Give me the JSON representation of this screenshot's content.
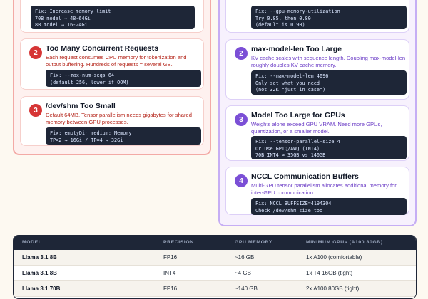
{
  "left_column": {
    "top_card": {
      "code": "Fix: Increase memory limit\n70B model → 48-64Gi\n8B model → 16-24Gi"
    },
    "cards": [
      {
        "number": "2",
        "title": "Too Many Concurrent Requests",
        "desc": "Each request consumes CPU memory for tokenization and output buffering. Hundreds of requests = several GB.",
        "code": "Fix: --max-num-seqs 64\n(default 256, lower if OOM)"
      },
      {
        "number": "3",
        "title": "/dev/shm Too Small",
        "desc": "Default 64MB. Tensor parallelism needs gigabytes for shared memory between GPU processes.",
        "code": "Fix: emptyDir medium: Memory\nTP=2 → 16Gi / TP=4 → 32Gi"
      }
    ]
  },
  "right_column": {
    "top_card": {
      "code": "Fix: --gpu-memory-utilization\nTry 0.85, then 0.80\n(default is 0.90)"
    },
    "cards": [
      {
        "number": "2",
        "title": "max-model-len Too Large",
        "desc": "KV cache scales with sequence length. Doubling max-model-len roughly doubles KV cache memory.",
        "code": "Fix: --max-model-len 4096\nOnly set what you need\n(not 32K \"just in case\")"
      },
      {
        "number": "3",
        "title": "Model Too Large for GPUs",
        "desc": "Weights alone exceed GPU VRAM. Need more GPUs, quantization, or a smaller model.",
        "code": "Fix: --tensor-parallel-size 4\nOr use GPTQ/AWQ (INT4)\n70B INT4 ≈ 35GB vs 140GB"
      },
      {
        "number": "4",
        "title": "NCCL Communication Buffers",
        "desc": "Multi-GPU tensor parallelism allocates additional memory for inter-GPU communication.",
        "code": "Fix: NCCL_BUFFSIZE=4194304\nCheck /dev/shm size too"
      }
    ]
  },
  "table": {
    "headers": [
      "MODEL",
      "PRECISION",
      "GPU MEMORY",
      "MINIMUM GPUs (A100 80GB)"
    ],
    "rows": [
      [
        "Llama 3.1 8B",
        "FP16",
        "~16 GB",
        "1x A100 (comfortable)"
      ],
      [
        "Llama 3.1 8B",
        "INT4",
        "~4 GB",
        "1x T4 16GB (tight)"
      ],
      [
        "Llama 3.1 70B",
        "FP16",
        "~140 GB",
        "2x A100 80GB (tight)"
      ]
    ]
  },
  "colors": {
    "red_accent": "#d63535",
    "purple_accent": "#7b4fd6",
    "code_bg": "#1e2637",
    "page_bg": "#fdf9f1"
  }
}
